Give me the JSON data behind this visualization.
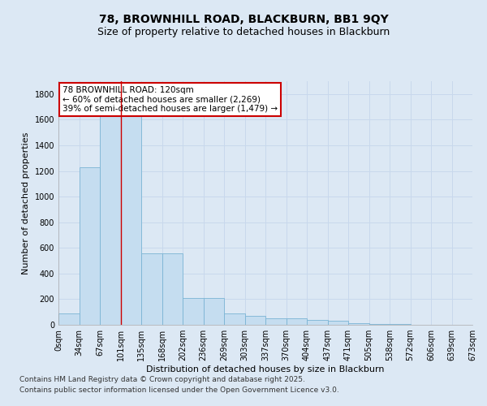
{
  "title_line1": "78, BROWNHILL ROAD, BLACKBURN, BB1 9QY",
  "title_line2": "Size of property relative to detached houses in Blackburn",
  "xlabel": "Distribution of detached houses by size in Blackburn",
  "ylabel": "Number of detached properties",
  "bar_values": [
    90,
    1230,
    1700,
    1700,
    560,
    560,
    210,
    210,
    90,
    70,
    50,
    50,
    40,
    30,
    10,
    5,
    5,
    3,
    2,
    2
  ],
  "bar_color": "#c5ddf0",
  "bar_edge_color": "#7ab4d4",
  "tick_labels": [
    "0sqm",
    "34sqm",
    "67sqm",
    "101sqm",
    "135sqm",
    "168sqm",
    "202sqm",
    "236sqm",
    "269sqm",
    "303sqm",
    "337sqm",
    "370sqm",
    "404sqm",
    "437sqm",
    "471sqm",
    "505sqm",
    "538sqm",
    "572sqm",
    "606sqm",
    "639sqm",
    "673sqm"
  ],
  "ylim": [
    0,
    1900
  ],
  "yticks": [
    0,
    200,
    400,
    600,
    800,
    1000,
    1200,
    1400,
    1600,
    1800
  ],
  "annotation_text": "78 BROWNHILL ROAD: 120sqm\n← 60% of detached houses are smaller (2,269)\n39% of semi-detached houses are larger (1,479) →",
  "red_line_x": 3.0,
  "annotation_box_facecolor": "#ffffff",
  "annotation_box_edgecolor": "#cc0000",
  "grid_color": "#c8d8ec",
  "bg_color": "#dce8f4",
  "footer_line1": "Contains HM Land Registry data © Crown copyright and database right 2025.",
  "footer_line2": "Contains public sector information licensed under the Open Government Licence v3.0.",
  "title_fontsize": 10,
  "subtitle_fontsize": 9,
  "annotation_fontsize": 7.5,
  "axis_label_fontsize": 8,
  "tick_fontsize": 7,
  "footer_fontsize": 6.5
}
